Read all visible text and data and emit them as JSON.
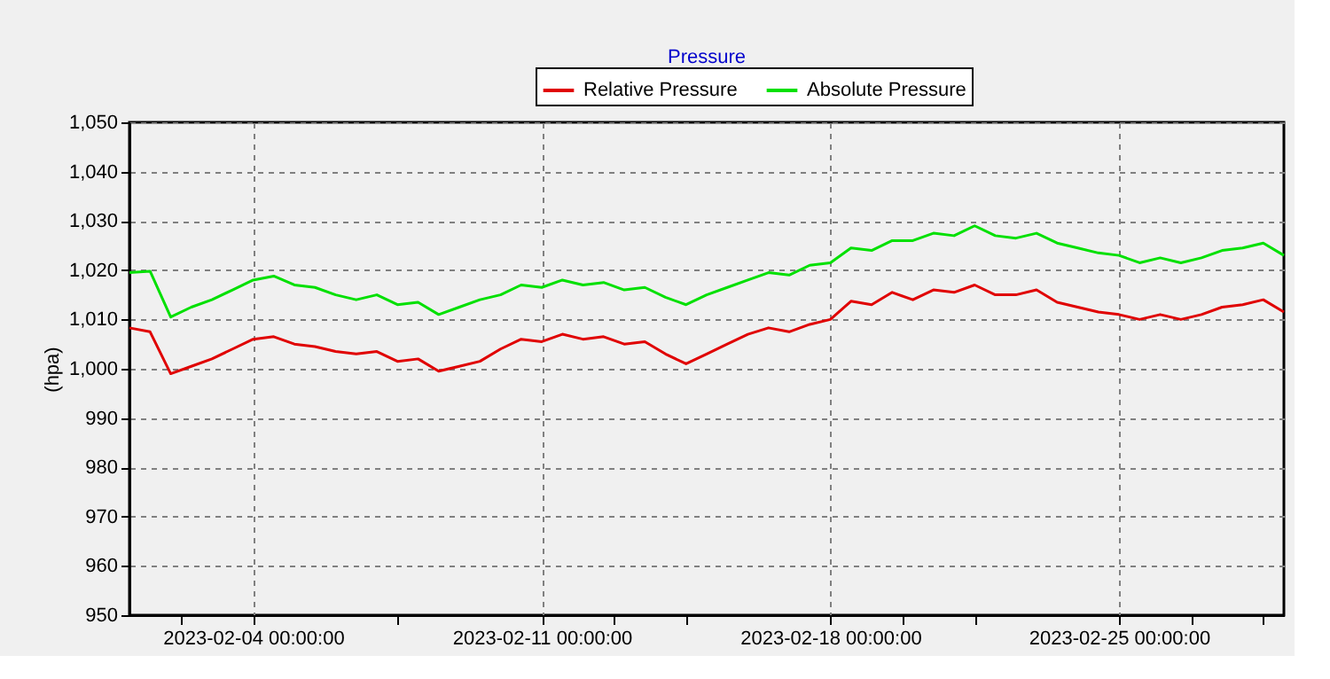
{
  "chart_data": {
    "type": "line",
    "title": "Pressure",
    "ylabel": "(hpa)",
    "x": [
      "2023-02-01T00:00",
      "2023-02-01T12:00",
      "2023-02-02T00:00",
      "2023-02-02T12:00",
      "2023-02-03T00:00",
      "2023-02-03T12:00",
      "2023-02-04T00:00",
      "2023-02-04T12:00",
      "2023-02-05T00:00",
      "2023-02-05T12:00",
      "2023-02-06T00:00",
      "2023-02-06T12:00",
      "2023-02-07T00:00",
      "2023-02-07T12:00",
      "2023-02-08T00:00",
      "2023-02-08T12:00",
      "2023-02-09T00:00",
      "2023-02-09T12:00",
      "2023-02-10T00:00",
      "2023-02-10T12:00",
      "2023-02-11T00:00",
      "2023-02-11T12:00",
      "2023-02-12T00:00",
      "2023-02-12T12:00",
      "2023-02-13T00:00",
      "2023-02-13T12:00",
      "2023-02-14T00:00",
      "2023-02-14T12:00",
      "2023-02-15T00:00",
      "2023-02-15T12:00",
      "2023-02-16T00:00",
      "2023-02-16T12:00",
      "2023-02-17T00:00",
      "2023-02-17T12:00",
      "2023-02-18T00:00",
      "2023-02-18T12:00",
      "2023-02-19T00:00",
      "2023-02-19T12:00",
      "2023-02-20T00:00",
      "2023-02-20T12:00",
      "2023-02-21T00:00",
      "2023-02-21T12:00",
      "2023-02-22T00:00",
      "2023-02-22T12:00",
      "2023-02-23T00:00",
      "2023-02-23T12:00",
      "2023-02-24T00:00",
      "2023-02-24T12:00",
      "2023-02-25T00:00",
      "2023-02-25T12:00",
      "2023-02-26T00:00",
      "2023-02-26T12:00",
      "2023-02-27T00:00",
      "2023-02-27T12:00",
      "2023-02-28T00:00",
      "2023-02-28T12:00",
      "2023-03-01T00:00"
    ],
    "series": [
      {
        "name": "Relative Pressure",
        "color": "#e00000",
        "values": [
          1008.3,
          1007.5,
          999,
          1000.5,
          1002,
          1004,
          1006,
          1006.5,
          1005,
          1004.5,
          1003.5,
          1003,
          1003.5,
          1001.5,
          1002,
          999.5,
          1000.5,
          1001.5,
          1004,
          1006,
          1005.5,
          1007,
          1006,
          1006.5,
          1005,
          1005.5,
          1003,
          1001,
          1003,
          1005,
          1007,
          1008.3,
          1007.5,
          1009,
          1010,
          1013.7,
          1013,
          1015.5,
          1014,
          1016,
          1015.5,
          1017,
          1015,
          1015,
          1016,
          1013.5,
          1012.5,
          1011.5,
          1011,
          1010,
          1011,
          1010,
          1011,
          1012.5,
          1013,
          1014,
          1011.5
        ]
      },
      {
        "name": "Absolute Pressure",
        "color": "#00e000",
        "values": [
          1019.5,
          1019.8,
          1010.5,
          1012.5,
          1014,
          1016,
          1018,
          1018.8,
          1017,
          1016.5,
          1015,
          1014,
          1015,
          1013,
          1013.5,
          1011,
          1012.5,
          1014,
          1015,
          1017,
          1016.5,
          1018,
          1017,
          1017.5,
          1016,
          1016.5,
          1014.5,
          1013,
          1015,
          1016.5,
          1018,
          1019.5,
          1019,
          1021,
          1021.5,
          1024.5,
          1024,
          1026,
          1026,
          1027.5,
          1027,
          1029,
          1027,
          1026.5,
          1027.5,
          1025.5,
          1024.5,
          1023.5,
          1023,
          1021.5,
          1022.5,
          1021.5,
          1022.5,
          1024,
          1024.5,
          1025.5,
          1023
        ]
      }
    ],
    "xlim": [
      "2023-02-01T00:00",
      "2023-03-01T00:00"
    ],
    "xticks": [
      {
        "value": "2023-02-02T06:00",
        "label": null
      },
      {
        "value": "2023-02-04T00:00",
        "label": "2023-02-04 00:00:00"
      },
      {
        "value": "2023-02-07T12:00",
        "label": null
      },
      {
        "value": "2023-02-11T00:00",
        "label": "2023-02-11 00:00:00"
      },
      {
        "value": "2023-02-12T18:00",
        "label": null
      },
      {
        "value": "2023-02-14T12:00",
        "label": null
      },
      {
        "value": "2023-02-18T00:00",
        "label": "2023-02-18 00:00:00"
      },
      {
        "value": "2023-02-19T18:00",
        "label": null
      },
      {
        "value": "2023-02-21T12:00",
        "label": null
      },
      {
        "value": "2023-02-25T00:00",
        "label": "2023-02-25 00:00:00"
      },
      {
        "value": "2023-02-26T18:00",
        "label": null
      },
      {
        "value": "2023-02-28T12:00",
        "label": null
      }
    ],
    "ylim": [
      950,
      1050
    ],
    "yticks": [
      {
        "value": 950,
        "label": "950"
      },
      {
        "value": 960,
        "label": "960"
      },
      {
        "value": 970,
        "label": "970"
      },
      {
        "value": 980,
        "label": "980"
      },
      {
        "value": 990,
        "label": "990"
      },
      {
        "value": 1000,
        "label": "1,000"
      },
      {
        "value": 1010,
        "label": "1,010"
      },
      {
        "value": 1020,
        "label": "1,020"
      },
      {
        "value": 1030,
        "label": "1,030"
      },
      {
        "value": 1040,
        "label": "1,040"
      },
      {
        "value": 1050,
        "label": "1,050"
      }
    ],
    "grid": true,
    "legend": "top",
    "marker": "none",
    "line_style": "solid"
  }
}
